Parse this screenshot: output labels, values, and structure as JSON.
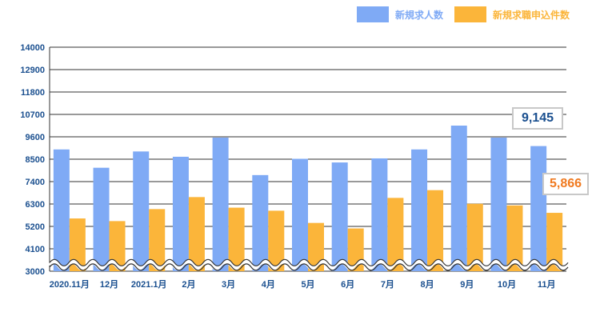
{
  "colors": {
    "job_openings": "#7faaf5",
    "applications": "#fbb53a",
    "axis_text": "#1a4f8f",
    "grid": "#333333",
    "callout_blue": "#1a4f8f",
    "callout_orange": "#f07a20"
  },
  "legend": {
    "job_openings": "新規求人数",
    "applications": "新規求職申込件数"
  },
  "callouts": {
    "latest_job_openings": "9,145",
    "latest_applications": "5,866"
  },
  "chart_data": {
    "type": "bar",
    "categories": [
      "2020.11月",
      "12月",
      "2021.1月",
      "2月",
      "3月",
      "4月",
      "5月",
      "6月",
      "7月",
      "8月",
      "9月",
      "10月",
      "11月"
    ],
    "series": [
      {
        "name": "新規求人数",
        "values": [
          8980,
          8080,
          8880,
          8620,
          9560,
          7720,
          8520,
          8340,
          8540,
          8980,
          10150,
          9560,
          9145
        ]
      },
      {
        "name": "新規求職申込件数",
        "values": [
          5590,
          5460,
          6050,
          6640,
          6120,
          5970,
          5370,
          5100,
          6600,
          6980,
          6310,
          6230,
          5866
        ]
      }
    ],
    "ylim": [
      3000,
      14000
    ],
    "yticks": [
      3000,
      4100,
      5200,
      6300,
      7400,
      8500,
      9600,
      10700,
      11800,
      12900,
      14000
    ],
    "axis_break": true,
    "grid": true,
    "legend_position": "top-right"
  }
}
